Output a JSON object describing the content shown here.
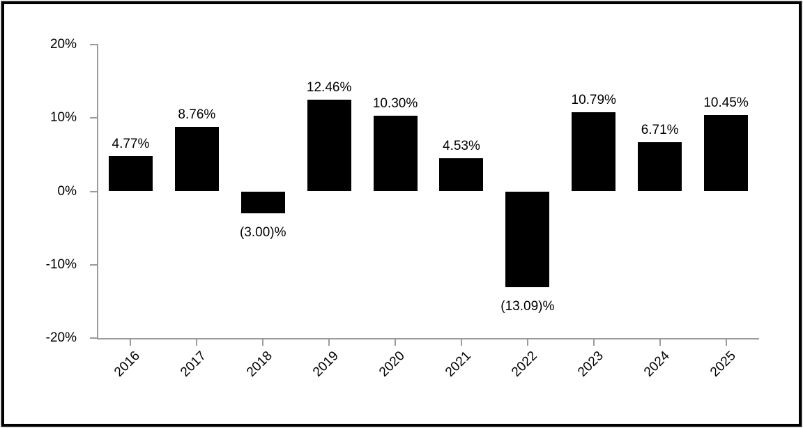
{
  "chart_data": {
    "type": "bar",
    "title": "",
    "xlabel": "",
    "ylabel": "",
    "categories": [
      "2016",
      "2017",
      "2018",
      "2019",
      "2020",
      "2021",
      "2022",
      "2023",
      "2024",
      "2025"
    ],
    "values": [
      4.77,
      8.76,
      -3.0,
      12.46,
      10.3,
      4.53,
      -13.09,
      10.79,
      6.71,
      10.45
    ],
    "value_labels": [
      "4.77%",
      "8.76%",
      "(3.00)%",
      "12.46%",
      "10.30%",
      "4.53%",
      "(13.09)%",
      "10.79%",
      "6.71%",
      "10.45%"
    ],
    "ylim": [
      -20,
      20
    ],
    "yticks": [
      20,
      10,
      0,
      -10,
      -20
    ],
    "ytick_labels": [
      "20%",
      "10%",
      "0%",
      "-10%",
      "-20%"
    ],
    "grid": false,
    "legend": "none",
    "bar_color": "#000000",
    "axis_color": "#9b9b9b",
    "text_color": "#000000",
    "frame_border_color": "#000000",
    "background_color": "#ffffff"
  }
}
